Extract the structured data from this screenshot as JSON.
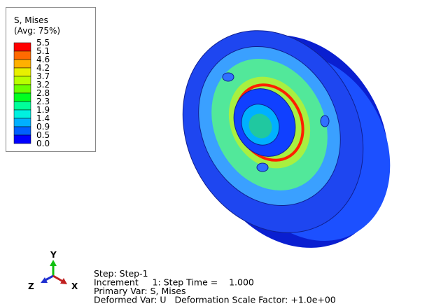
{
  "legend": {
    "title": "S, Mises",
    "subtitle": "(Avg: 75%)",
    "labels": [
      "5.5",
      "5.1",
      "4.6",
      "4.2",
      "3.7",
      "3.2",
      "2.8",
      "2.3",
      "1.9",
      "1.4",
      "0.9",
      "0.5",
      "0.0"
    ],
    "colors": [
      "#ff0000",
      "#ff6a00",
      "#ffb000",
      "#e8f000",
      "#b8ff00",
      "#6aff00",
      "#00ff20",
      "#00ff9a",
      "#00f0e0",
      "#00b0ff",
      "#0060ff",
      "#0000ff"
    ]
  },
  "triad": {
    "y": "Y",
    "z": "Z",
    "x": "X"
  },
  "status": [
    "Step: Step-1",
    "Increment     1: Step Time =    1.000",
    "Primary Var: S, Mises",
    "Deformed Var: U   Deformation Scale Factor: +1.0e+00"
  ]
}
